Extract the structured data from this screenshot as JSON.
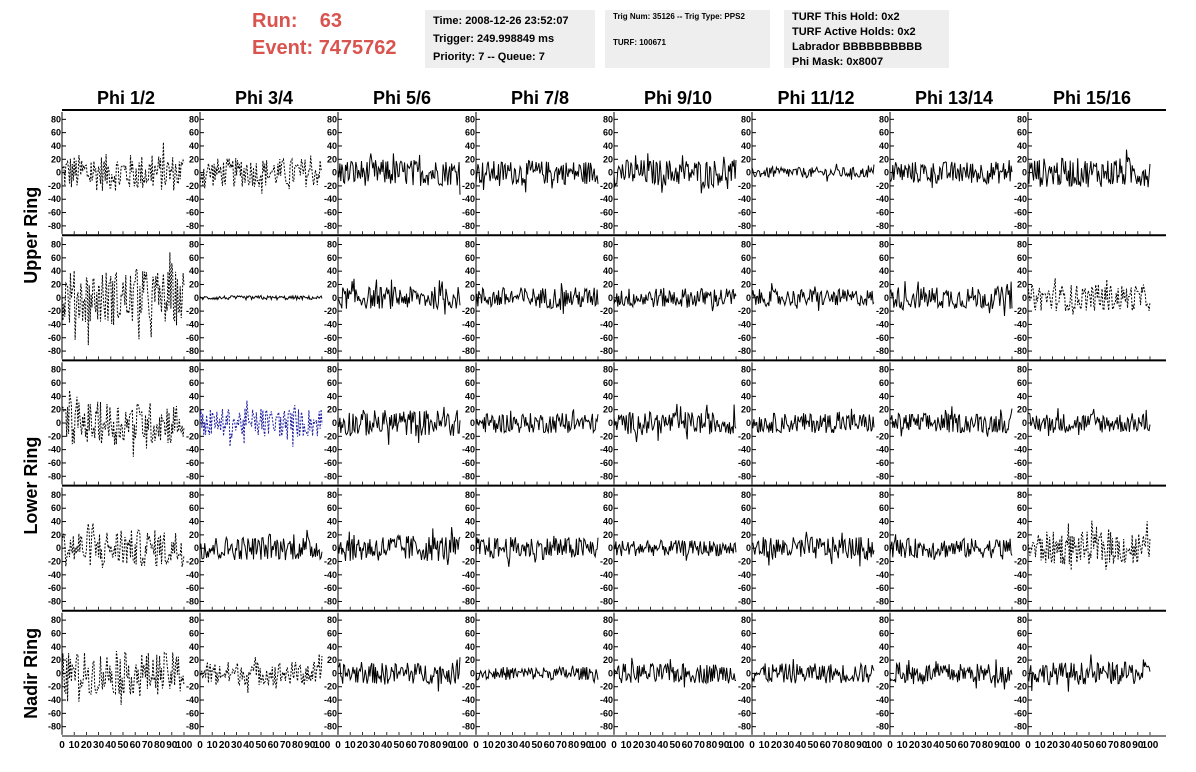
{
  "header": {
    "run_label": "Run:",
    "run_value": "63",
    "event_label": "Event:",
    "event_value": "7475762",
    "accent_color": "#d9534f"
  },
  "info_box_1": {
    "time": "Time: 2008-12-26 23:52:07",
    "trigger": "Trigger: 249.998849 ms",
    "priority": "Priority: 7 -- Queue: 7"
  },
  "info_box_2": {
    "trig": "Trig Num: 35126 -- Trig Type: PPS2",
    "turf": "TURF: 100671"
  },
  "info_box_3": {
    "this_hold": "TURF This Hold: 0x2",
    "active_holds": "TURF Active Holds: 0x2",
    "labrador": "Labrador BBBBBBBBBB",
    "phi_mask": "Phi Mask: 0x8007"
  },
  "chart_data": {
    "type": "line",
    "title": "",
    "columns": [
      "Phi 1/2",
      "Phi 3/4",
      "Phi 5/6",
      "Phi 7/8",
      "Phi 9/10",
      "Phi 11/12",
      "Phi 13/14",
      "Phi 15/16"
    ],
    "rows": [
      "Upper Ring",
      "Lower Ring",
      "Nadir Ring"
    ],
    "panel_rows": 5,
    "xlim": [
      0,
      100
    ],
    "ylim": [
      -85,
      85
    ],
    "x_ticks": [
      0,
      10,
      20,
      30,
      40,
      50,
      60,
      70,
      80,
      90,
      100
    ],
    "x_tick_labels": [
      "0",
      "10",
      "20",
      "30",
      "40",
      "50",
      "60",
      "70",
      "80",
      "90",
      "100"
    ],
    "y_ticks": [
      -80,
      -60,
      -40,
      -20,
      0,
      20,
      40,
      60,
      80
    ],
    "y_tick_labels": [
      "-80",
      "-60",
      "-40",
      "-20",
      "0",
      "20",
      "40",
      "60",
      "80"
    ],
    "panels": [
      [
        {
          "style": "dashed",
          "amp": 28
        },
        {
          "style": "dashed",
          "amp": 22
        },
        {
          "style": "solid",
          "amp": 20
        },
        {
          "style": "solid",
          "amp": 18
        },
        {
          "style": "solid",
          "amp": 20
        },
        {
          "style": "solid",
          "amp": 8
        },
        {
          "style": "solid",
          "amp": 17
        },
        {
          "style": "solid",
          "amp": 22
        }
      ],
      [
        {
          "style": "dashed",
          "amp": 42
        },
        {
          "style": "solid",
          "amp": 3
        },
        {
          "style": "solid",
          "amp": 17
        },
        {
          "style": "solid",
          "amp": 16
        },
        {
          "style": "solid",
          "amp": 15
        },
        {
          "style": "solid",
          "amp": 13
        },
        {
          "style": "solid",
          "amp": 17
        },
        {
          "style": "dashed",
          "amp": 20
        }
      ],
      [
        {
          "style": "dashed",
          "amp": 32
        },
        {
          "style": "dashed-blue",
          "amp": 22
        },
        {
          "style": "solid",
          "amp": 20
        },
        {
          "style": "solid",
          "amp": 15
        },
        {
          "style": "solid",
          "amp": 17
        },
        {
          "style": "solid",
          "amp": 15
        },
        {
          "style": "solid",
          "amp": 15
        },
        {
          "style": "solid",
          "amp": 15
        }
      ],
      [
        {
          "style": "dashed",
          "amp": 28
        },
        {
          "style": "solid",
          "amp": 18
        },
        {
          "style": "solid",
          "amp": 20
        },
        {
          "style": "solid",
          "amp": 17
        },
        {
          "style": "solid",
          "amp": 12
        },
        {
          "style": "solid",
          "amp": 17
        },
        {
          "style": "solid",
          "amp": 15
        },
        {
          "style": "dashed",
          "amp": 25
        }
      ],
      [
        {
          "style": "dashed",
          "amp": 32
        },
        {
          "style": "dashed",
          "amp": 18
        },
        {
          "style": "solid",
          "amp": 16
        },
        {
          "style": "solid",
          "amp": 10
        },
        {
          "style": "solid",
          "amp": 15
        },
        {
          "style": "solid",
          "amp": 15
        },
        {
          "style": "solid",
          "amp": 15
        },
        {
          "style": "solid",
          "amp": 17
        }
      ]
    ],
    "trace_colors": {
      "solid": "#000000",
      "dashed": "#000000",
      "dashed-blue": "#1a1aa0"
    },
    "grid": false
  }
}
